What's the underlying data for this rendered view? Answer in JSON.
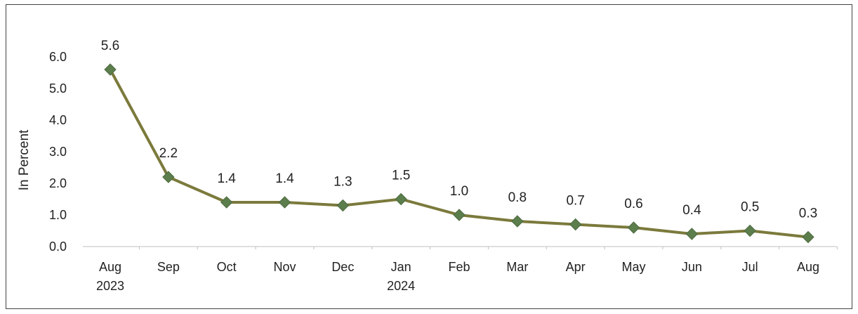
{
  "chart_data": {
    "type": "line",
    "ylabel": "In Percent",
    "ylim": [
      0,
      6
    ],
    "yticks": [
      "0.0",
      "1.0",
      "2.0",
      "3.0",
      "4.0",
      "5.0",
      "6.0"
    ],
    "categories": [
      {
        "month": "Aug",
        "year": "2023"
      },
      {
        "month": "Sep",
        "year": ""
      },
      {
        "month": "Oct",
        "year": ""
      },
      {
        "month": "Nov",
        "year": ""
      },
      {
        "month": "Dec",
        "year": ""
      },
      {
        "month": "Jan",
        "year": "2024"
      },
      {
        "month": "Feb",
        "year": ""
      },
      {
        "month": "Mar",
        "year": ""
      },
      {
        "month": "Apr",
        "year": ""
      },
      {
        "month": "May",
        "year": ""
      },
      {
        "month": "Jun",
        "year": ""
      },
      {
        "month": "Jul",
        "year": ""
      },
      {
        "month": "Aug",
        "year": ""
      }
    ],
    "series": [
      {
        "values": [
          5.6,
          2.2,
          1.4,
          1.4,
          1.3,
          1.5,
          1.0,
          0.8,
          0.7,
          0.6,
          0.4,
          0.5,
          0.3
        ],
        "labels": [
          "5.6",
          "2.2",
          "1.4",
          "1.4",
          "1.3",
          "1.5",
          "1.0",
          "0.8",
          "0.7",
          "0.6",
          "0.4",
          "0.5",
          "0.3"
        ],
        "line_color": "#7b7a3c",
        "marker_color": "#5c7d4c"
      }
    ],
    "grid": false,
    "legend": "none"
  }
}
